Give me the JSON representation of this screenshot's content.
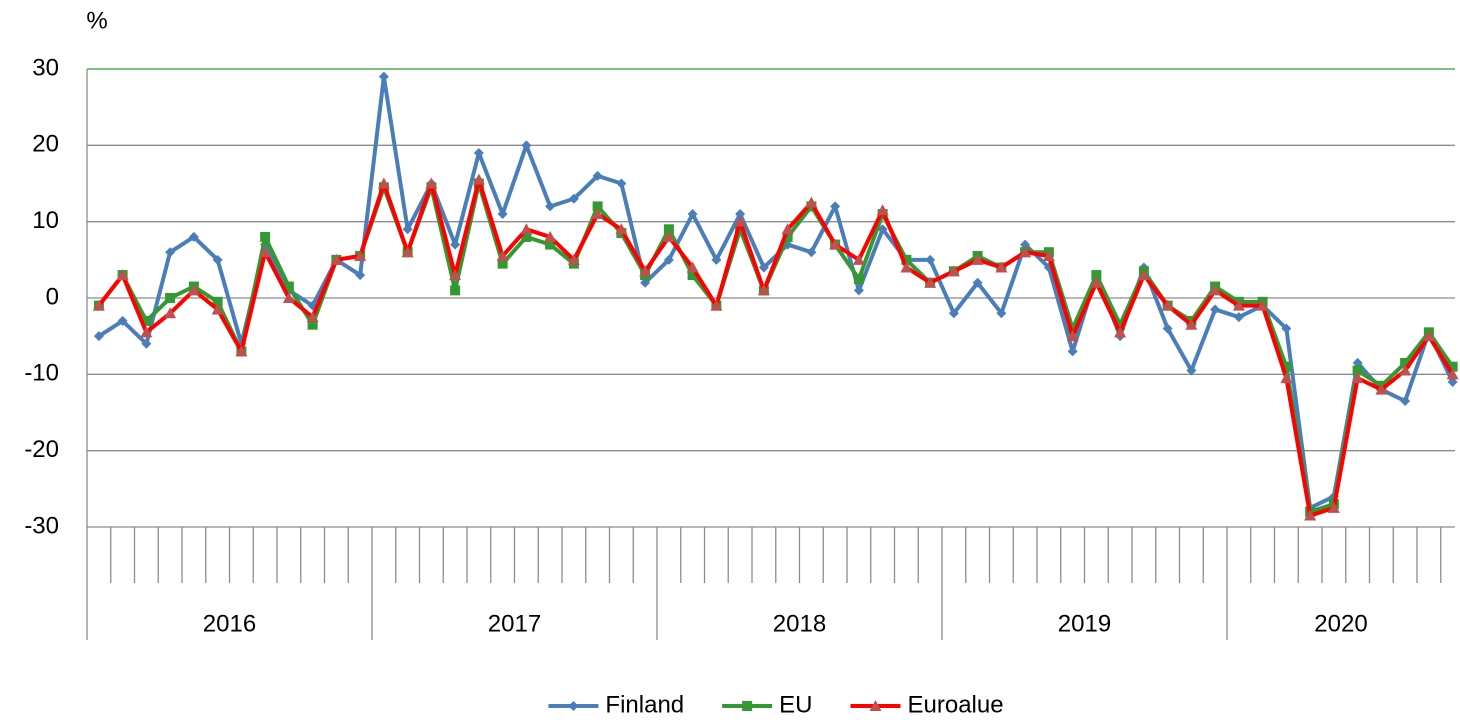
{
  "chart_data": {
    "type": "line",
    "y_label": "%",
    "groups": [
      {
        "label": "2016",
        "size": 12
      },
      {
        "label": "2017",
        "size": 12
      },
      {
        "label": "2018",
        "size": 12
      },
      {
        "label": "2019",
        "size": 12
      },
      {
        "label": "2020",
        "size": 10
      }
    ],
    "ylim": [
      -30,
      30
    ],
    "yticks": [
      -30,
      -20,
      -10,
      0,
      10,
      20,
      30
    ],
    "grid": true,
    "top_border_color": "#339933",
    "legend": "bottom",
    "series": [
      {
        "name": "Finland",
        "color": "#4a7ebb",
        "marker": "diamond",
        "marker_color": "#4a7ebb",
        "values": [
          -5,
          -3,
          -6,
          6,
          8,
          5,
          -6,
          7,
          1,
          -1,
          5,
          3,
          29,
          9,
          15,
          7,
          19,
          11,
          20,
          12,
          13,
          16,
          15,
          2,
          5,
          11,
          5,
          11,
          4,
          7,
          6,
          12,
          1,
          9,
          5,
          5,
          -2,
          2,
          -2,
          7,
          4,
          -7,
          3,
          -5,
          4,
          -4,
          -9.5,
          -1.5,
          -2.5,
          -1,
          -4,
          -27.5,
          -26,
          -8.5,
          -12,
          -13.5,
          -4.5,
          -11
        ]
      },
      {
        "name": "EU",
        "color": "#339933",
        "marker": "square",
        "marker_color": "#339933",
        "values": [
          -1,
          3,
          -3,
          0,
          1.5,
          -0.5,
          -7,
          8,
          1.5,
          -3.5,
          5,
          5.5,
          14.5,
          6,
          14.5,
          1,
          15,
          4.5,
          8,
          7,
          4.5,
          12,
          8.5,
          3,
          9,
          3,
          -1,
          9,
          1,
          8,
          12,
          7,
          2.5,
          11,
          5,
          2,
          3.5,
          5.5,
          4,
          6,
          6,
          -4,
          3,
          -3.5,
          3.5,
          -1,
          -3,
          1.5,
          -0.5,
          -0.5,
          -9,
          -28,
          -27,
          -9.5,
          -11.5,
          -8.5,
          -4.5,
          -9
        ]
      },
      {
        "name": "Euroalue",
        "color": "#ff0000",
        "marker": "triangle",
        "marker_color": "#c0504d",
        "values": [
          -1,
          3,
          -4.5,
          -2,
          1,
          -1.5,
          -7,
          6,
          0,
          -2.5,
          5,
          5.5,
          15,
          6,
          15,
          3,
          15.5,
          5.5,
          9,
          8,
          5,
          11,
          9,
          3.5,
          8,
          4,
          -1,
          10,
          1,
          9,
          12.5,
          7,
          5,
          11.5,
          4,
          2,
          3.5,
          5,
          4,
          6,
          5.5,
          -5,
          2,
          -4.5,
          3,
          -1,
          -3.5,
          1,
          -1,
          -1,
          -10.5,
          -28.5,
          -27.5,
          -10.5,
          -12,
          -9.5,
          -5,
          -10
        ]
      }
    ]
  }
}
